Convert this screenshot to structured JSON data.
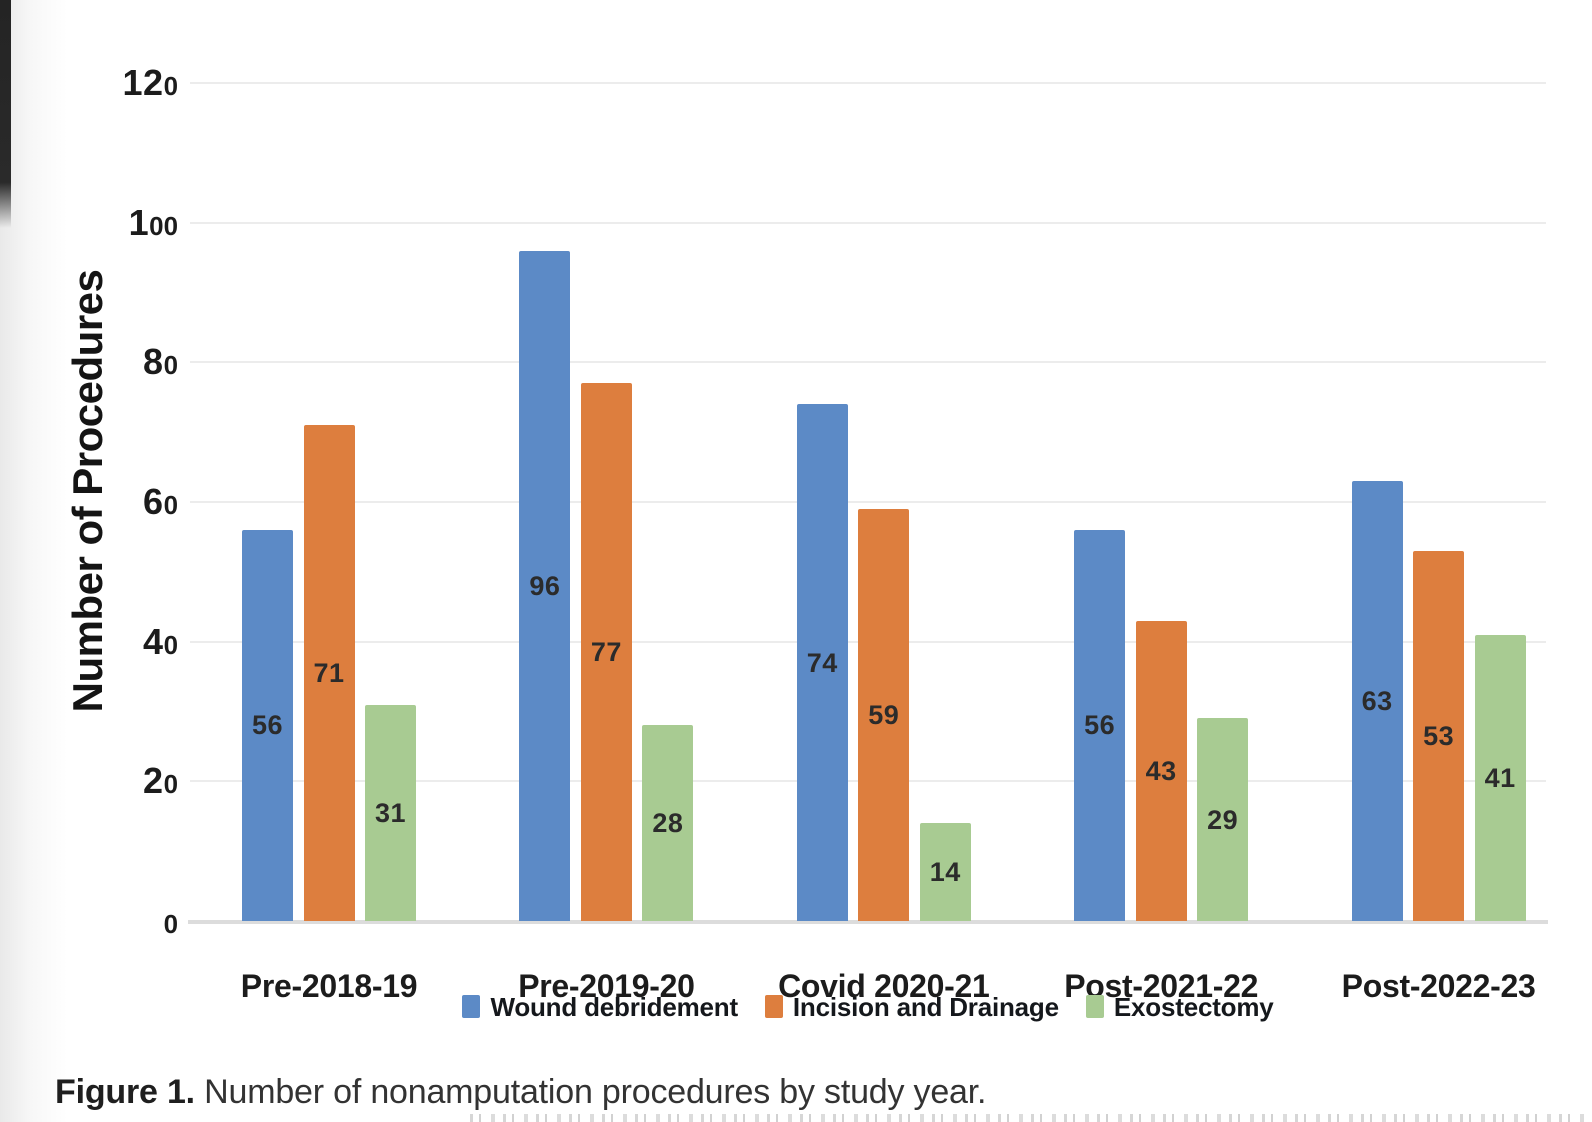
{
  "figure": {
    "caption_label": "Figure 1.",
    "caption_text": " Number of nonamputation procedures by study year."
  },
  "chart_data": {
    "type": "bar",
    "title": "",
    "xlabel": "",
    "ylabel": "Number of Procedures",
    "categories": [
      "Pre-2018-19",
      "Pre-2019-20",
      "Covid 2020-21",
      "Post-2021-22",
      "Post-2022-23"
    ],
    "series": [
      {
        "name": "Wound debridement",
        "color": "#5C8AC6",
        "values": [
          56,
          96,
          74,
          56,
          63
        ]
      },
      {
        "name": "Incision and Drainage",
        "color": "#DD7E3E",
        "values": [
          71,
          77,
          59,
          43,
          53
        ]
      },
      {
        "name": "Exostectomy",
        "color": "#A8CB92",
        "values": [
          31,
          28,
          14,
          29,
          41
        ]
      }
    ],
    "ylim": [
      0,
      120
    ],
    "yticks": [
      0,
      20,
      40,
      60,
      80,
      100,
      120
    ],
    "grid": true,
    "legend_position": "bottom",
    "data_labels": "inside-center"
  },
  "colors": {
    "grid_line": "#ececec",
    "axis_line": "#dcdcdc",
    "tick_text": "#1c1c1c",
    "axis_title_text": "#141414",
    "data_label_text": "#2b2b2b",
    "legend_text": "#15181c",
    "caption_text": "#333333"
  }
}
